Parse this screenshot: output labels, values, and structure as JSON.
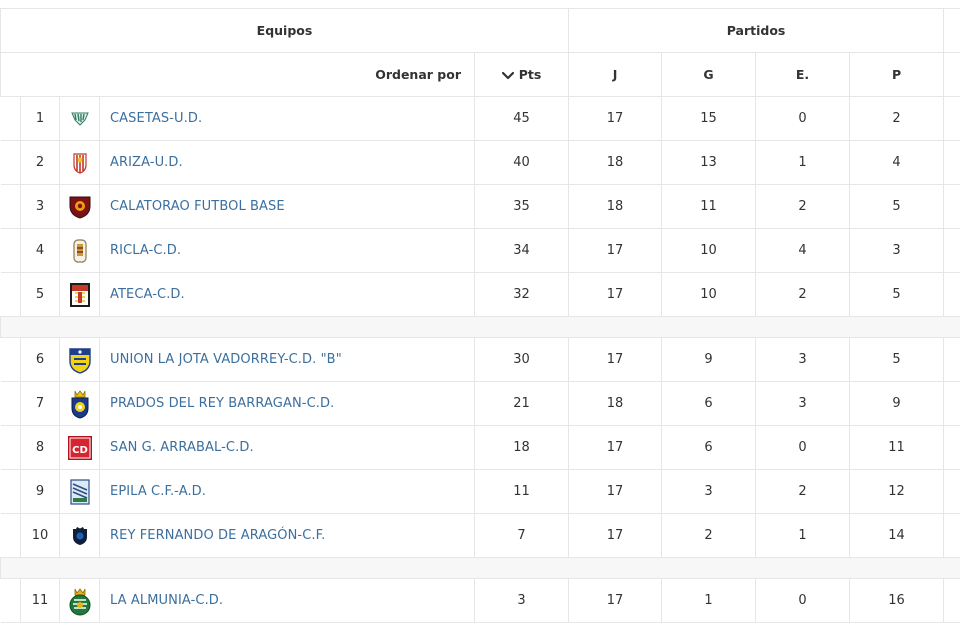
{
  "header": {
    "equipos": "Equipos",
    "partidos": "Partidos",
    "ordenar_por": "Ordenar por",
    "pts": "Pts",
    "j": "J",
    "g": "G",
    "e": "E.",
    "p": "P"
  },
  "colors": {
    "link": "#3b6f9e",
    "border": "#e6e6e6",
    "separator": "#f7f7f7"
  },
  "teams": [
    {
      "pos": "1",
      "name": "CASETAS-U.D.",
      "pts": "45",
      "j": "17",
      "g": "15",
      "e": "0",
      "p": "2",
      "crest": "casetas-crest-icon"
    },
    {
      "pos": "2",
      "name": "ARIZA-U.D.",
      "pts": "40",
      "j": "18",
      "g": "13",
      "e": "1",
      "p": "4",
      "crest": "ariza-crest-icon"
    },
    {
      "pos": "3",
      "name": "CALATORAO FUTBOL BASE",
      "pts": "35",
      "j": "18",
      "g": "11",
      "e": "2",
      "p": "5",
      "crest": "calatorao-crest-icon"
    },
    {
      "pos": "4",
      "name": "RICLA-C.D.",
      "pts": "34",
      "j": "17",
      "g": "10",
      "e": "4",
      "p": "3",
      "crest": "ricla-crest-icon"
    },
    {
      "pos": "5",
      "name": "ATECA-C.D.",
      "pts": "32",
      "j": "17",
      "g": "10",
      "e": "2",
      "p": "5",
      "crest": "ateca-crest-icon"
    },
    {
      "pos": "6",
      "name": "UNION LA JOTA VADORREY-C.D. \"B\"",
      "pts": "30",
      "j": "17",
      "g": "9",
      "e": "3",
      "p": "5",
      "crest": "union-la-jota-crest-icon"
    },
    {
      "pos": "7",
      "name": "PRADOS DEL REY BARRAGAN-C.D.",
      "pts": "21",
      "j": "18",
      "g": "6",
      "e": "3",
      "p": "9",
      "crest": "prados-del-rey-crest-icon"
    },
    {
      "pos": "8",
      "name": "SAN G. ARRABAL-C.D.",
      "pts": "18",
      "j": "17",
      "g": "6",
      "e": "0",
      "p": "11",
      "crest": "san-g-arrabal-crest-icon"
    },
    {
      "pos": "9",
      "name": "EPILA C.F.-A.D.",
      "pts": "11",
      "j": "17",
      "g": "3",
      "e": "2",
      "p": "12",
      "crest": "epila-crest-icon"
    },
    {
      "pos": "10",
      "name": "REY FERNANDO DE ARAGÓN-C.F.",
      "pts": "7",
      "j": "17",
      "g": "2",
      "e": "1",
      "p": "14",
      "crest": "rey-fernando-crest-icon"
    },
    {
      "pos": "11",
      "name": "LA ALMUNIA-C.D.",
      "pts": "3",
      "j": "17",
      "g": "1",
      "e": "0",
      "p": "16",
      "crest": "la-almunia-crest-icon"
    }
  ]
}
